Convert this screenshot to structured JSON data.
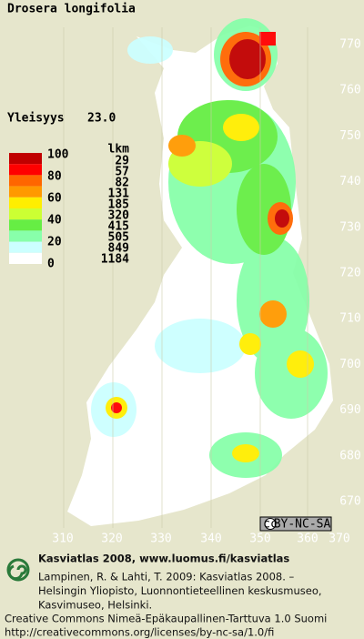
{
  "title": "Drosera longifolia",
  "prevalence": {
    "label": "Yleisyys",
    "value": "23.0"
  },
  "legend": {
    "percent_labels": [
      "100",
      "80",
      "60",
      "40",
      "20",
      "0"
    ],
    "count_header": "lkm",
    "counts": [
      "29",
      "57",
      "82",
      "131",
      "185",
      "320",
      "415",
      "505",
      "849",
      "1184"
    ],
    "colors": [
      "#c00000",
      "#ff0000",
      "#ff6600",
      "#ff9900",
      "#ffee00",
      "#ccff33",
      "#66ee44",
      "#88ffaa",
      "#ccffff",
      "#ffffff"
    ]
  },
  "x_labels": [
    "310",
    "320",
    "330",
    "340",
    "350",
    "360",
    "370"
  ],
  "y_labels": [
    "770",
    "760",
    "750",
    "740",
    "730",
    "720",
    "710",
    "700",
    "690",
    "680",
    "670"
  ],
  "badge": "BY-NC-SA",
  "footer": {
    "heading": "Kasviatlas 2008, www.luomus.fi/kasviatlas",
    "citation": [
      "Lampinen, R. & Lahti, T. 2009: Kasviatlas 2008. –",
      "Helsingin Yliopisto, Luonnontieteellinen keskusmuseo,",
      "Kasvimuseo, Helsinki."
    ],
    "license": "Creative Commons Nimeä-Epäkaupallinen-Tarttuva 1.0 Suomi",
    "url": "http://creativecommons.org/licenses/by-nc-sa/1.0/fi"
  }
}
